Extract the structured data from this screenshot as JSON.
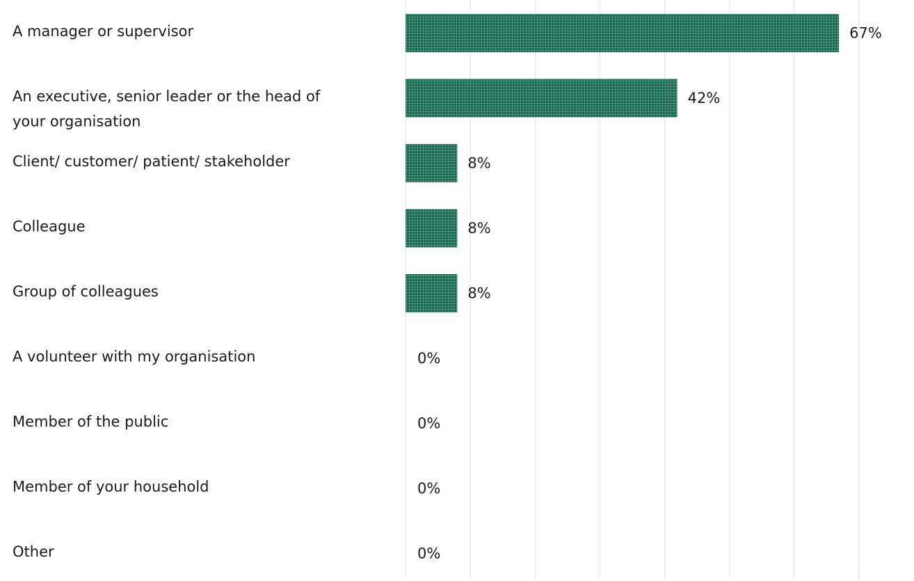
{
  "chart_data": {
    "type": "bar",
    "orientation": "horizontal",
    "categories": [
      "A manager or supervisor",
      "An executive, senior leader or the head of your organisation",
      "Client/ customer/ patient/ stakeholder",
      "Colleague",
      "Group of colleagues",
      "A volunteer with my organisation",
      "Member of the public",
      "Member of your household",
      "Other"
    ],
    "category_lines": [
      [
        "A manager or supervisor"
      ],
      [
        "An executive, senior leader or the head of",
        "your organisation"
      ],
      [
        "Client/ customer/ patient/ stakeholder"
      ],
      [
        "Colleague"
      ],
      [
        "Group of colleagues"
      ],
      [
        "A volunteer with my organisation"
      ],
      [
        "Member of the public"
      ],
      [
        "Member of your household"
      ],
      [
        "Other"
      ]
    ],
    "values": [
      67,
      42,
      8,
      8,
      8,
      0,
      0,
      0,
      0
    ],
    "value_labels": [
      "67%",
      "42%",
      "8%",
      "8%",
      "8%",
      "0%",
      "0%",
      "0%",
      "0%"
    ],
    "xlim": [
      0,
      70
    ],
    "grid": true,
    "bar_color": "#0e6b50",
    "bar_pattern": "fine grid hatch",
    "grid_color": "#e6e6e6",
    "title": "",
    "xlabel": "",
    "ylabel": ""
  }
}
